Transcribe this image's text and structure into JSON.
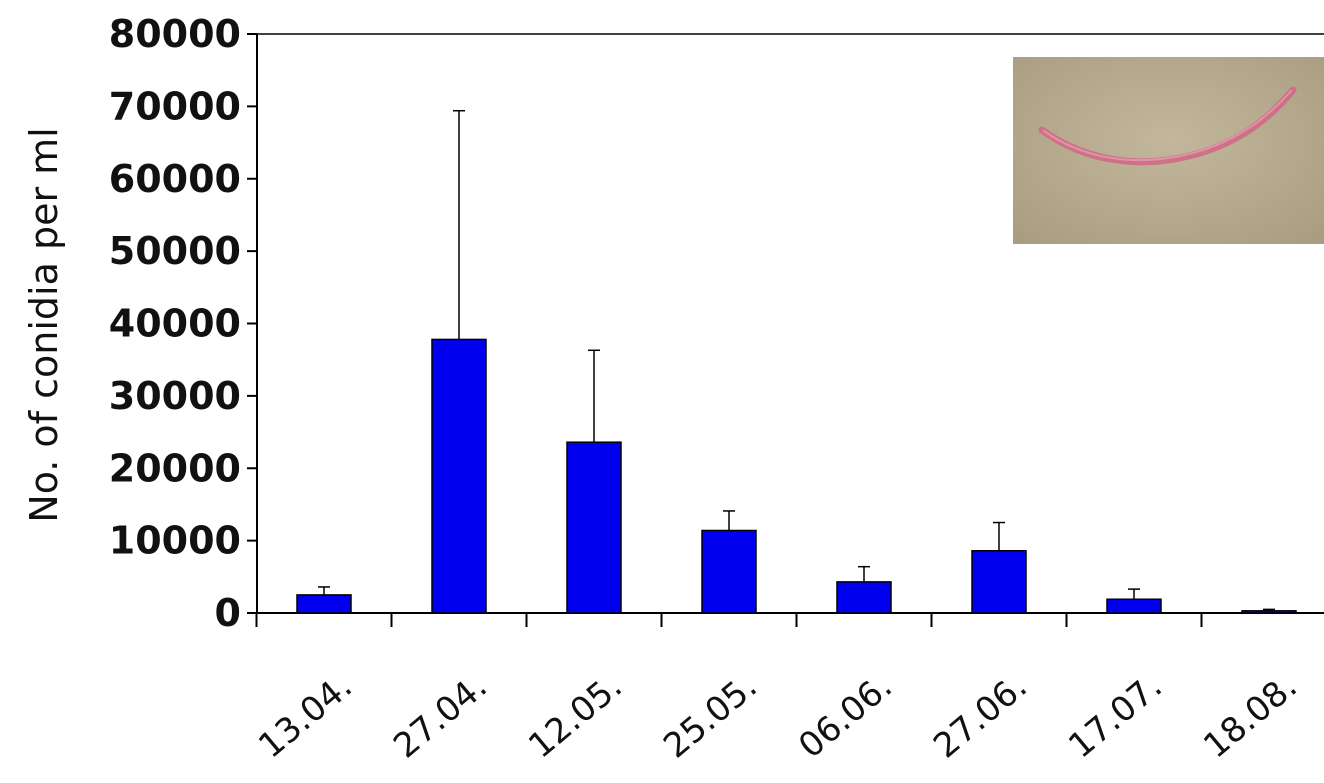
{
  "chart_data": {
    "type": "bar",
    "title": "",
    "xlabel": "",
    "ylabel": "No. of conidia per ml",
    "categories": [
      "13.04.",
      "27.04.",
      "12.05.",
      "25.05.",
      "06.06.",
      "27.06.",
      "17.07.",
      "18.08."
    ],
    "values": [
      2500,
      37800,
      23600,
      11400,
      4300,
      8600,
      1900,
      300
    ],
    "error_upper": [
      3600,
      69400,
      36300,
      14100,
      6400,
      12500,
      3300,
      500
    ],
    "ylim": [
      0,
      80000
    ],
    "yticks": [
      0,
      10000,
      20000,
      30000,
      40000,
      50000,
      60000,
      70000,
      80000
    ],
    "grid": false,
    "legend": "none",
    "bar_color": "#0000EE",
    "inset": "photo-of-pink-curved-conidium"
  }
}
